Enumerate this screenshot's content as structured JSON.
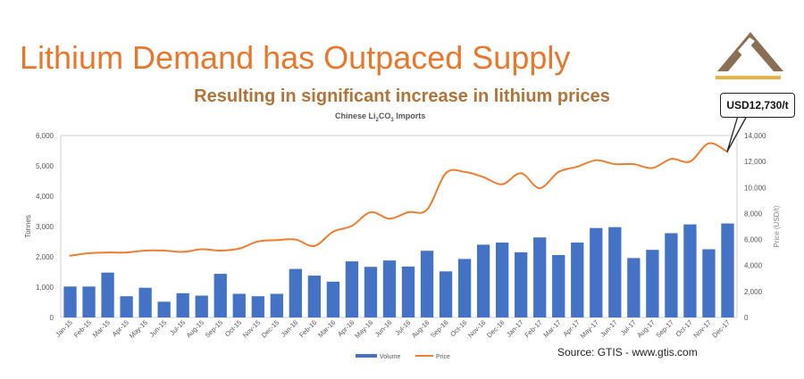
{
  "slide": {
    "title": "Lithium Demand has Outpaced Supply",
    "subtitle": "Resulting in significant increase in lithium prices",
    "source": "Source: GTIS - www.gtis.com",
    "callout": "USD12,730/t",
    "logo": "mountain-logo"
  },
  "chart_data": {
    "type": "bar+line",
    "title_parts": [
      "Chinese Li",
      "2",
      "CO",
      "3",
      " Imports"
    ],
    "ylabel": "Tonnes",
    "y2label": "Price (USD/t)",
    "ylim": [
      0,
      6000
    ],
    "y2lim": [
      0,
      14000
    ],
    "yticks": [
      "0",
      "1,000",
      "2,000",
      "3,000",
      "4,000",
      "5,000",
      "6,000"
    ],
    "y2ticks": [
      "0",
      "2,000",
      "4,000",
      "6,000",
      "8,000",
      "10,000",
      "12,000",
      "14,000"
    ],
    "grid": false,
    "legend": "bottom",
    "colors": {
      "Volume": "#4472C4",
      "Price": "#ED7D31"
    },
    "categories": [
      "Jan-15",
      "Feb-15",
      "Mar-15",
      "Apr-15",
      "May-15",
      "Jun-15",
      "Jul-15",
      "Aug-15",
      "Sep-15",
      "Oct-15",
      "Nov-15",
      "Dec-15",
      "Jan-16",
      "Feb-16",
      "Mar-16",
      "Apr-16",
      "May-16",
      "Jun-16",
      "Jul-16",
      "Aug-16",
      "Sep-16",
      "Oct-16",
      "Nov-16",
      "Dec-16",
      "Jan-17",
      "Feb-17",
      "Mar-17",
      "Apr-17",
      "May-17",
      "Jun-17",
      "Jul-17",
      "Aug-17",
      "Sep-17",
      "Oct-17",
      "Nov-17",
      "Dec-17"
    ],
    "series": [
      {
        "name": "Volume",
        "type": "bar",
        "axis": "left",
        "values": [
          1020,
          1020,
          1480,
          700,
          980,
          520,
          800,
          720,
          1440,
          780,
          700,
          780,
          1600,
          1380,
          1180,
          1850,
          1670,
          1880,
          1680,
          2200,
          1520,
          1930,
          2400,
          2470,
          2150,
          2640,
          2060,
          2470,
          2950,
          2980,
          1960,
          2230,
          2780,
          3070,
          2250,
          3100
        ]
      },
      {
        "name": "Price",
        "type": "line",
        "axis": "right",
        "values": [
          4750,
          4950,
          5000,
          5000,
          5150,
          5150,
          5050,
          5250,
          5150,
          5300,
          5850,
          5950,
          6000,
          5500,
          6600,
          7050,
          8100,
          7600,
          8100,
          8300,
          11100,
          11200,
          10800,
          10250,
          11100,
          9950,
          11200,
          11600,
          12100,
          11800,
          11800,
          11500,
          12200,
          12000,
          13400,
          12730
        ]
      }
    ]
  }
}
